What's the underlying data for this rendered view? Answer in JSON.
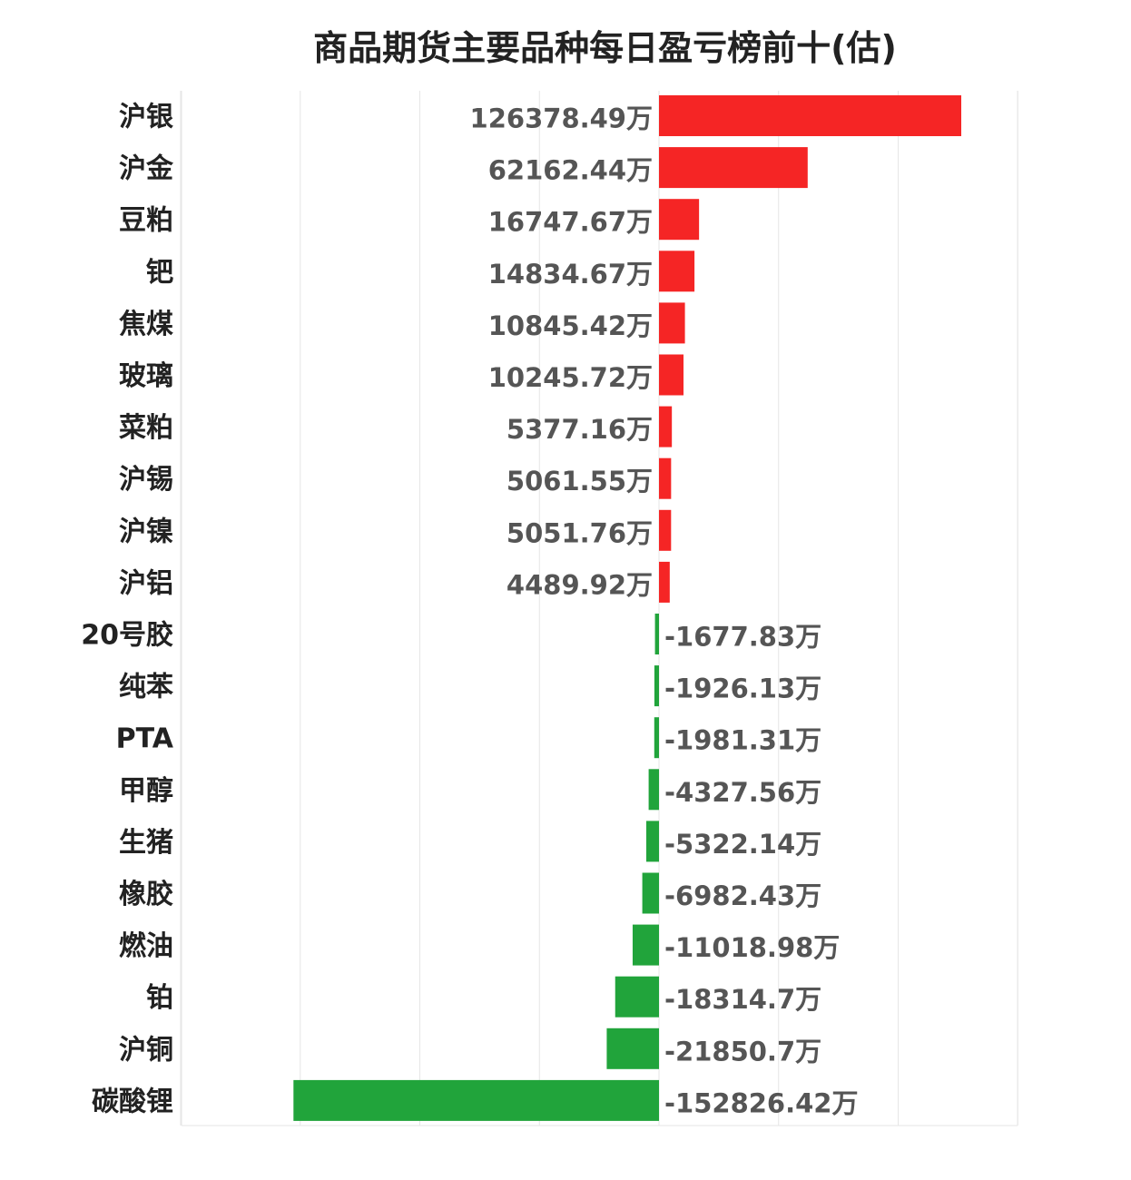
{
  "chart_data": {
    "type": "bar",
    "orientation": "horizontal",
    "title": "商品期货主要品种每日盈亏榜前十(估)",
    "unit": "万",
    "categories": [
      "沪银",
      "沪金",
      "豆粕",
      "钯",
      "焦煤",
      "玻璃",
      "菜粕",
      "沪锡",
      "沪镍",
      "沪铝",
      "20号胶",
      "纯苯",
      "PTA",
      "甲醇",
      "生猪",
      "橡胶",
      "燃油",
      "铂",
      "沪铜",
      "碳酸锂"
    ],
    "values": [
      126378.49,
      62162.44,
      16747.67,
      14834.67,
      10845.42,
      10245.72,
      5377.16,
      5061.55,
      5051.76,
      4489.92,
      -1677.83,
      -1926.13,
      -1981.31,
      -4327.56,
      -5322.14,
      -6982.43,
      -11018.98,
      -18314.7,
      -21850.7,
      -152826.42
    ],
    "value_labels": [
      "126378.49万",
      "62162.44万",
      "16747.67万",
      "14834.67万",
      "10845.42万",
      "10245.72万",
      "5377.16万",
      "5061.55万",
      "5051.76万",
      "4489.92万",
      "-1677.83万",
      "-1926.13万",
      "-1981.31万",
      "-4327.56万",
      "-5322.14万",
      "-6982.43万",
      "-11018.98万",
      "-18314.7万",
      "-21850.7万",
      "-152826.42万"
    ],
    "xlim": [
      -200000,
      150000
    ],
    "grid": true,
    "colors": {
      "positive": "#f52525",
      "negative": "#21a43b",
      "grid": "#e6e6e6"
    }
  }
}
